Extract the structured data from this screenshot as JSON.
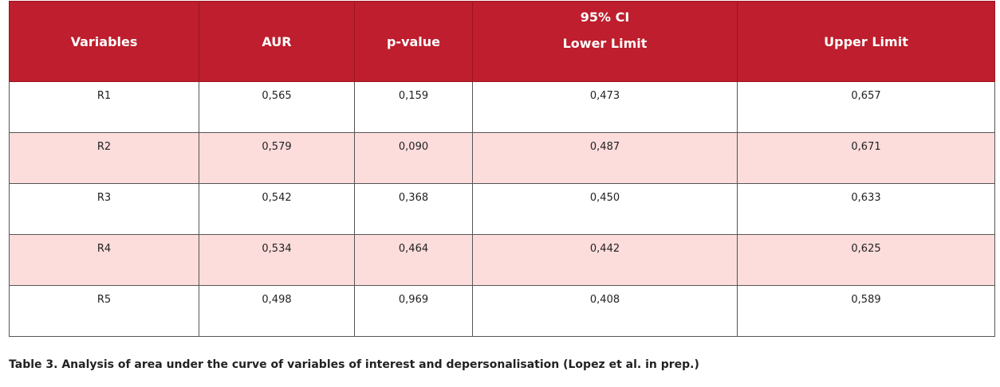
{
  "table": {
    "headers": {
      "variables": "Variables",
      "aur": "AUR",
      "pvalue": "p-value",
      "ci_group": "95% CI",
      "lower": "Lower Limit",
      "upper": "Upper Limit"
    },
    "rows": [
      {
        "variable": "R1",
        "aur": "0,565",
        "pvalue": "0,159",
        "lower": "0,473",
        "upper": "0,657"
      },
      {
        "variable": "R2",
        "aur": "0,579",
        "pvalue": "0,090",
        "lower": "0,487",
        "upper": "0,671"
      },
      {
        "variable": "R3",
        "aur": "0,542",
        "pvalue": "0,368",
        "lower": "0,450",
        "upper": "0,633"
      },
      {
        "variable": "R4",
        "aur": "0,534",
        "pvalue": "0,464",
        "lower": "0,442",
        "upper": "0,625"
      },
      {
        "variable": "R5",
        "aur": "0,498",
        "pvalue": "0,969",
        "lower": "0,408",
        "upper": "0,589"
      }
    ]
  },
  "caption": "Table 3. Analysis of area under the curve of variables of interest and depersonalisation (Lopez et al. in prep.)",
  "colors": {
    "header_bg": "#be1e2d",
    "alt_row_bg": "#fddcdc"
  }
}
